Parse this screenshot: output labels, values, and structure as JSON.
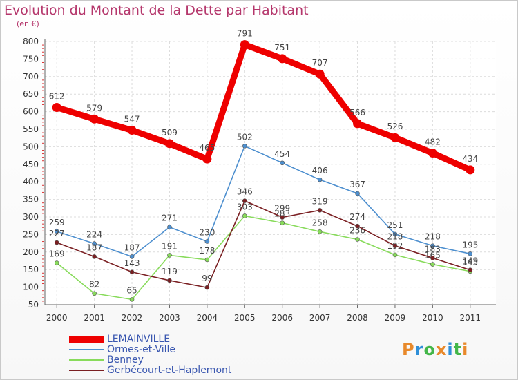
{
  "header": {
    "title": "Evolution du Montant de la Dette par Habitant",
    "subtitle": "(en €)"
  },
  "logo": {
    "text": "Proxiti",
    "colors": [
      "#e8892b",
      "#2f8fd8",
      "#43b649",
      "#e8892b",
      "#2f8fd8",
      "#43b649",
      "#e8892b"
    ]
  },
  "chart_data": {
    "type": "line",
    "title": "Evolution du Montant de la Dette par Habitant",
    "subtitle": "(en €)",
    "xlabel": "",
    "ylabel": "",
    "categories": [
      "2000",
      "2001",
      "2002",
      "2003",
      "2004",
      "2005",
      "2006",
      "2007",
      "2008",
      "2009",
      "2010",
      "2011"
    ],
    "ylim": [
      50,
      800
    ],
    "yticks": [
      50,
      100,
      150,
      200,
      250,
      300,
      350,
      400,
      450,
      500,
      550,
      600,
      650,
      700,
      750,
      800
    ],
    "grid": true,
    "legend_position": "bottom-left",
    "series": [
      {
        "name": "LEMAINVILLE",
        "color": "#ee0000",
        "width": "thick",
        "values": [
          612,
          579,
          547,
          509,
          465,
          791,
          751,
          707,
          566,
          526,
          482,
          434
        ]
      },
      {
        "name": "Ormes-et-Ville",
        "color": "#4d8fcf",
        "width": "thin",
        "values": [
          259,
          224,
          187,
          271,
          230,
          502,
          454,
          406,
          367,
          251,
          218,
          195
        ]
      },
      {
        "name": "Benney",
        "color": "#88db5b",
        "width": "thin",
        "values": [
          169,
          82,
          65,
          191,
          178,
          303,
          283,
          258,
          236,
          192,
          165,
          145
        ]
      },
      {
        "name": "Gerbécourt-et-Haplemont",
        "color": "#7a1f22",
        "width": "thin",
        "values": [
          227,
          187,
          143,
          119,
          99,
          346,
          299,
          319,
          274,
          218,
          183,
          149
        ]
      }
    ]
  }
}
